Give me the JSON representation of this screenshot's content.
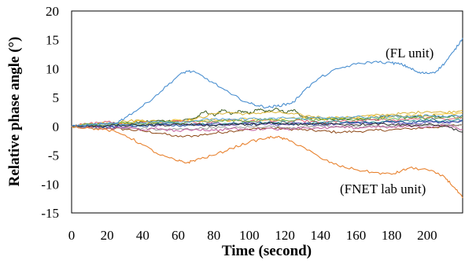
{
  "chart_data": {
    "type": "line",
    "title": "",
    "xlabel": "Time (second)",
    "ylabel": "Relative phase angle (°)",
    "xlim": [
      0,
      220
    ],
    "ylim": [
      -15,
      20
    ],
    "xticks": [
      0,
      20,
      40,
      60,
      80,
      100,
      120,
      140,
      160,
      180,
      200
    ],
    "yticks": [
      -15,
      -10,
      -5,
      0,
      5,
      10,
      15,
      20
    ],
    "grid": false,
    "legend": "none",
    "annotations": [
      {
        "text": "(FL unit)",
        "color": "#3B86C8",
        "series": "FL unit"
      },
      {
        "text": "(FNET lab unit)",
        "color": "#E47A2E",
        "series": "FNET lab unit"
      }
    ],
    "series": [
      {
        "name": "FL unit",
        "color": "#4A8FD0",
        "x": [
          0,
          10,
          20,
          25,
          30,
          40,
          50,
          60,
          65,
          70,
          80,
          90,
          100,
          105,
          110,
          115,
          120,
          125,
          130,
          140,
          150,
          160,
          170,
          180,
          185,
          190,
          195,
          200,
          205,
          210,
          215,
          220
        ],
        "y": [
          0,
          0.2,
          0.4,
          0.6,
          1.5,
          3.5,
          6,
          8.8,
          9.6,
          9.3,
          7.5,
          5.5,
          4.0,
          3.6,
          3.3,
          3.5,
          3.8,
          4.2,
          6,
          8.5,
          10,
          10.8,
          11.2,
          11,
          10.8,
          10.2,
          9.3,
          9.2,
          9.5,
          11,
          13,
          15.3
        ]
      },
      {
        "name": "FNET lab unit",
        "color": "#E8822F",
        "x": [
          0,
          10,
          20,
          30,
          40,
          50,
          60,
          65,
          70,
          80,
          90,
          100,
          110,
          115,
          120,
          130,
          140,
          150,
          160,
          170,
          180,
          185,
          190,
          200,
          210,
          215,
          220
        ],
        "y": [
          0,
          -0.3,
          -0.6,
          -1.5,
          -3.2,
          -5,
          -6,
          -6.3,
          -5.8,
          -5,
          -3.8,
          -2.7,
          -2,
          -1.8,
          -2.2,
          -3.5,
          -5.5,
          -6.8,
          -7.5,
          -8,
          -8.3,
          -7.8,
          -7.2,
          -7.5,
          -8.8,
          -10.5,
          -12.4
        ]
      },
      {
        "name": "",
        "color": "#8B4513",
        "x": [
          0,
          10,
          20,
          30,
          40,
          50,
          60,
          70,
          80,
          90,
          100,
          110,
          120,
          130,
          140,
          150,
          160,
          170,
          180,
          190,
          200,
          210,
          220
        ],
        "y": [
          0,
          0,
          -0.3,
          -0.5,
          -0.8,
          -1.2,
          -1.8,
          -1.6,
          -1.2,
          -0.8,
          -0.5,
          -0.3,
          -0.4,
          -0.6,
          -0.8,
          -1,
          -0.9,
          -0.7,
          -0.6,
          -0.4,
          -0.2,
          0,
          0.3
        ]
      },
      {
        "name": "",
        "color": "#3B5B1E",
        "x": [
          0,
          10,
          20,
          30,
          40,
          50,
          60,
          70,
          75,
          80,
          85,
          90,
          95,
          100,
          105,
          110,
          115,
          120,
          125,
          130,
          140,
          150,
          160,
          170,
          180,
          190,
          200,
          210,
          220
        ],
        "y": [
          0,
          0.3,
          0.6,
          0.4,
          0.8,
          1,
          0.9,
          1.5,
          2.6,
          1.9,
          2.8,
          2.1,
          2.7,
          2.2,
          3,
          2.5,
          3.2,
          2.4,
          2.9,
          1.6,
          1.3,
          1.1,
          1.4,
          1.2,
          1.8,
          1.5,
          2,
          1.6,
          1.9
        ]
      },
      {
        "name": "",
        "color": "#D9B233",
        "x": [
          0,
          10,
          20,
          30,
          40,
          50,
          60,
          70,
          80,
          90,
          100,
          110,
          120,
          130,
          140,
          150,
          160,
          170,
          180,
          190,
          200,
          210,
          220
        ],
        "y": [
          0,
          0.4,
          0.5,
          0.9,
          1.1,
          0.8,
          1,
          1.3,
          2.2,
          2.4,
          2.1,
          2.5,
          2.3,
          1.9,
          1.6,
          1.4,
          1.7,
          1.9,
          2.1,
          2.3,
          2.6,
          2.4,
          2.8
        ]
      },
      {
        "name": "",
        "color": "#E06070",
        "x": [
          0,
          10,
          20,
          30,
          40,
          50,
          60,
          70,
          80,
          90,
          100,
          110,
          120,
          130,
          140,
          150,
          160,
          170,
          180,
          190,
          200,
          210,
          220
        ],
        "y": [
          0,
          0.5,
          0.8,
          0.3,
          0.7,
          0.5,
          1,
          0.6,
          0.9,
          1.2,
          0.8,
          1.1,
          0.7,
          1,
          0.6,
          0.9,
          0.8,
          1.2,
          1,
          1.3,
          1.5,
          1.2,
          1.6
        ]
      },
      {
        "name": "",
        "color": "#2F8F8F",
        "x": [
          0,
          10,
          20,
          30,
          40,
          50,
          60,
          70,
          80,
          90,
          100,
          110,
          120,
          130,
          140,
          150,
          160,
          170,
          180,
          190,
          200,
          210,
          220
        ],
        "y": [
          0,
          0.2,
          0.1,
          0.3,
          0.2,
          0.4,
          0.5,
          0.3,
          0.6,
          0.5,
          0.7,
          0.6,
          0.8,
          0.5,
          0.7,
          0.9,
          0.6,
          0.8,
          1,
          0.9,
          1.2,
          1,
          1.1
        ]
      },
      {
        "name": "",
        "color": "#7B5FC4",
        "x": [
          0,
          10,
          20,
          30,
          40,
          50,
          60,
          70,
          80,
          90,
          100,
          110,
          120,
          130,
          140,
          150,
          160,
          170,
          180,
          190,
          200,
          210,
          220
        ],
        "y": [
          0,
          -0.2,
          0.1,
          -0.1,
          0.3,
          0.1,
          0.4,
          0.2,
          0.5,
          0.3,
          0.6,
          0.4,
          0.3,
          0.5,
          0.2,
          0.4,
          0.6,
          0.5,
          0.7,
          0.4,
          0.8,
          0.6,
          0.9
        ]
      },
      {
        "name": "",
        "color": "#9A9A9A",
        "x": [
          0,
          10,
          20,
          30,
          40,
          50,
          60,
          70,
          80,
          90,
          100,
          110,
          120,
          130,
          140,
          150,
          160,
          170,
          180,
          190,
          200,
          210,
          220
        ],
        "y": [
          0,
          -0.3,
          -0.2,
          -0.4,
          -0.3,
          -0.6,
          -0.5,
          -0.4,
          -0.2,
          -0.3,
          -0.1,
          0,
          -0.2,
          -0.1,
          0.1,
          0,
          -0.2,
          0.1,
          0,
          0.2,
          0.1,
          0.3,
          0.2
        ]
      },
      {
        "name": "",
        "color": "#F2C230",
        "x": [
          0,
          10,
          20,
          30,
          40,
          50,
          60,
          70,
          80,
          90,
          100,
          110,
          120,
          130,
          140,
          150,
          160,
          170,
          180,
          190,
          200,
          210,
          220
        ],
        "y": [
          0,
          0.3,
          0.6,
          0.5,
          0.9,
          0.7,
          1.1,
          0.9,
          1.2,
          1,
          1.4,
          1.1,
          1.3,
          1.5,
          1.2,
          1.6,
          1.4,
          1.8,
          1.6,
          2,
          1.8,
          2.2,
          2.4
        ]
      },
      {
        "name": "",
        "color": "#1F4E9A",
        "x": [
          0,
          10,
          20,
          30,
          40,
          50,
          60,
          70,
          80,
          90,
          100,
          110,
          120,
          130,
          140,
          150,
          160,
          170,
          180,
          190,
          200,
          210,
          220
        ],
        "y": [
          0,
          0.1,
          -0.2,
          0.2,
          0,
          0.3,
          0.1,
          0.4,
          0.2,
          0.5,
          0.3,
          0.6,
          0.4,
          0.3,
          0.5,
          0.4,
          0.7,
          0.5,
          0.8,
          0.6,
          0.9,
          0.7,
          1
        ]
      },
      {
        "name": "",
        "color": "#6FB04A",
        "x": [
          0,
          10,
          20,
          30,
          40,
          50,
          60,
          70,
          80,
          90,
          100,
          110,
          120,
          130,
          140,
          150,
          160,
          170,
          180,
          190,
          200,
          210,
          220
        ],
        "y": [
          0,
          0.4,
          0.2,
          0.6,
          0.4,
          0.8,
          0.6,
          1,
          0.8,
          1.1,
          0.9,
          1.2,
          1,
          1.3,
          1.1,
          1.4,
          1.2,
          1.5,
          1.3,
          1.6,
          1.4,
          1.7,
          1.5
        ]
      },
      {
        "name": "",
        "color": "#C05C9C",
        "x": [
          0,
          10,
          20,
          30,
          40,
          50,
          60,
          70,
          80,
          90,
          100,
          110,
          120,
          130,
          140,
          150,
          160,
          170,
          180,
          190,
          200,
          210,
          220
        ],
        "y": [
          0,
          -0.1,
          -0.4,
          -0.2,
          -0.6,
          -0.4,
          -0.8,
          -0.5,
          -0.7,
          -0.4,
          -0.6,
          -0.3,
          -0.5,
          -0.2,
          -0.4,
          -0.1,
          -0.3,
          0,
          -0.2,
          0.1,
          -0.1,
          0.2,
          -0.5
        ]
      },
      {
        "name": "",
        "color": "#5FA8D8",
        "x": [
          0,
          10,
          20,
          30,
          40,
          50,
          60,
          70,
          80,
          90,
          100,
          110,
          120,
          130,
          140,
          150,
          160,
          170,
          180,
          190,
          200,
          210,
          220
        ],
        "y": [
          0,
          0.2,
          0.5,
          0.3,
          0.6,
          0.9,
          0.7,
          1,
          1.3,
          1.1,
          1.4,
          1.2,
          1.5,
          1.3,
          1.6,
          1.4,
          1.7,
          1.5,
          1.8,
          1.6,
          1.9,
          1.7,
          2
        ]
      },
      {
        "name": "",
        "color": "#333333",
        "x": [
          0,
          10,
          20,
          30,
          40,
          50,
          60,
          70,
          80,
          90,
          100,
          110,
          120,
          130,
          140,
          150,
          160,
          170,
          180,
          190,
          200,
          210,
          220
        ],
        "y": [
          0,
          0,
          0.2,
          0.1,
          0.3,
          0.2,
          0.4,
          0.3,
          0.2,
          0.4,
          0.3,
          0.5,
          0.4,
          0.3,
          0.5,
          0.4,
          0.3,
          0.5,
          0.4,
          0.2,
          0.3,
          0.1,
          -1
        ]
      }
    ]
  }
}
